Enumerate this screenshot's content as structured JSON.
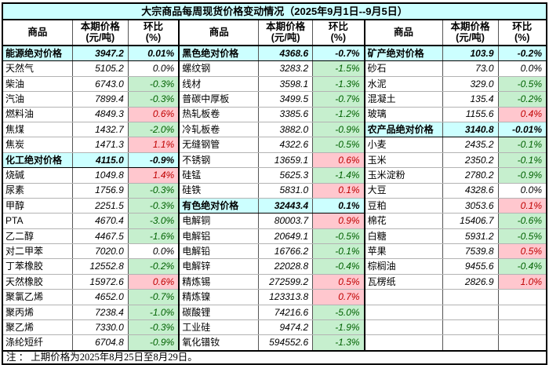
{
  "title": "大宗商品每周现货价格变动情况（2025年9月1日--9月5日）",
  "header": {
    "commodity": "商品",
    "price_line1": "本期价格",
    "price_line2": "(元/吨)",
    "pct_line1": "环比",
    "pct_line2": "(%)"
  },
  "note": "注 ： 上期价格为2025年8月25日至8月29日。",
  "colors": {
    "title_bg": "#CCFFFF",
    "section_bg": "#CCFFFF",
    "increase_bg": "#FFC7CE",
    "increase_text": "#C00000",
    "decrease_bg": "#C6EFCE",
    "decrease_text": "#006100"
  },
  "groups": [
    {
      "rows": [
        {
          "name": "能源绝对价格",
          "price": "3947.2",
          "pct": "0.01%",
          "type": "section"
        },
        {
          "name": "天然气",
          "price": "5105.2",
          "pct": "0.0%",
          "type": "flat"
        },
        {
          "name": "柴油",
          "price": "6743.0",
          "pct": "-0.3%",
          "type": "down"
        },
        {
          "name": "汽油",
          "price": "7899.4",
          "pct": "-0.3%",
          "type": "down"
        },
        {
          "name": "燃料油",
          "price": "4849.3",
          "pct": "0.6%",
          "type": "up"
        },
        {
          "name": "焦煤",
          "price": "1432.7",
          "pct": "-2.0%",
          "type": "down"
        },
        {
          "name": "焦炭",
          "price": "1471.3",
          "pct": "1.1%",
          "type": "up"
        },
        {
          "name": "化工绝对价格",
          "price": "4115.0",
          "pct": "-0.9%",
          "type": "section"
        },
        {
          "name": "烧碱",
          "price": "1049.8",
          "pct": "1.4%",
          "type": "up"
        },
        {
          "name": "尿素",
          "price": "1756.9",
          "pct": "-0.3%",
          "type": "down"
        },
        {
          "name": "甲醇",
          "price": "2251.5",
          "pct": "-0.3%",
          "type": "down"
        },
        {
          "name": "PTA",
          "price": "4670.4",
          "pct": "-3.0%",
          "type": "down"
        },
        {
          "name": "乙二醇",
          "price": "4467.5",
          "pct": "-1.6%",
          "type": "down"
        },
        {
          "name": "对二甲苯",
          "price": "7020.0",
          "pct": "0.0%",
          "type": "flat"
        },
        {
          "name": "丁苯橡胶",
          "price": "12552.8",
          "pct": "-0.2%",
          "type": "down"
        },
        {
          "name": "天然橡胶",
          "price": "15972.6",
          "pct": "0.6%",
          "type": "up"
        },
        {
          "name": "聚氯乙烯",
          "price": "4652.0",
          "pct": "-0.7%",
          "type": "down"
        },
        {
          "name": "聚丙烯",
          "price": "7238.4",
          "pct": "-1.0%",
          "type": "down"
        },
        {
          "name": "聚乙烯",
          "price": "7330.0",
          "pct": "-0.3%",
          "type": "down"
        },
        {
          "name": "涤纶短纤",
          "price": "6704.8",
          "pct": "-0.9%",
          "type": "down"
        }
      ]
    },
    {
      "rows": [
        {
          "name": "黑色绝对价格",
          "price": "4368.6",
          "pct": "-0.7%",
          "type": "section"
        },
        {
          "name": "螺纹钢",
          "price": "3283.2",
          "pct": "-1.5%",
          "type": "down"
        },
        {
          "name": "线材",
          "price": "3598.1",
          "pct": "-1.3%",
          "type": "down"
        },
        {
          "name": "普碳中厚板",
          "price": "3499.5",
          "pct": "-0.7%",
          "type": "down"
        },
        {
          "name": "热轧板卷",
          "price": "3385.6",
          "pct": "-1.2%",
          "type": "down"
        },
        {
          "name": "冷轧板卷",
          "price": "3882.0",
          "pct": "-0.9%",
          "type": "down"
        },
        {
          "name": "无缝钢管",
          "price": "4322.6",
          "pct": "-0.5%",
          "type": "down"
        },
        {
          "name": "不锈钢",
          "price": "13659.1",
          "pct": "0.6%",
          "type": "up"
        },
        {
          "name": "硅锰",
          "price": "5625.3",
          "pct": "-1.4%",
          "type": "down"
        },
        {
          "name": "硅铁",
          "price": "5831.0",
          "pct": "0.1%",
          "type": "up"
        },
        {
          "name": "有色绝对价格",
          "price": "32443.4",
          "pct": "0.1%",
          "type": "section"
        },
        {
          "name": "电解铜",
          "price": "80003.7",
          "pct": "0.9%",
          "type": "up"
        },
        {
          "name": "电解铝",
          "price": "20649.1",
          "pct": "-0.5%",
          "type": "down"
        },
        {
          "name": "电解铅",
          "price": "16766.2",
          "pct": "-0.1%",
          "type": "down"
        },
        {
          "name": "电解锌",
          "price": "22028.8",
          "pct": "-0.4%",
          "type": "down"
        },
        {
          "name": "精炼锡",
          "price": "272599.2",
          "pct": "0.5%",
          "type": "up"
        },
        {
          "name": "精炼镍",
          "price": "123313.8",
          "pct": "0.7%",
          "type": "up"
        },
        {
          "name": "碳酸锂",
          "price": "74216.6",
          "pct": "-5.0%",
          "type": "down"
        },
        {
          "name": "工业硅",
          "price": "9474.2",
          "pct": "-1.9%",
          "type": "down"
        },
        {
          "name": "氧化镨钕",
          "price": "594552.6",
          "pct": "-1.3%",
          "type": "down"
        }
      ]
    },
    {
      "rows": [
        {
          "name": "矿产绝对价格",
          "price": "103.9",
          "pct": "-0.2%",
          "type": "section"
        },
        {
          "name": "砂石",
          "price": "73.0",
          "pct": "0.0%",
          "type": "flat"
        },
        {
          "name": "水泥",
          "price": "329.0",
          "pct": "-0.5%",
          "type": "down"
        },
        {
          "name": "混凝土",
          "price": "135.4",
          "pct": "-0.2%",
          "type": "down"
        },
        {
          "name": "玻璃",
          "price": "1155.6",
          "pct": "0.4%",
          "type": "up"
        },
        {
          "name": "农产品绝对价格",
          "price": "3140.8",
          "pct": "-0.01%",
          "type": "section"
        },
        {
          "name": "小麦",
          "price": "2435.2",
          "pct": "-0.1%",
          "type": "down"
        },
        {
          "name": "玉米",
          "price": "2350.2",
          "pct": "-0.1%",
          "type": "down"
        },
        {
          "name": "玉米淀粉",
          "price": "2780.2",
          "pct": "-0.9%",
          "type": "down"
        },
        {
          "name": "大豆",
          "price": "4328.6",
          "pct": "0.0%",
          "type": "flat"
        },
        {
          "name": "豆粕",
          "price": "3053.6",
          "pct": "0.1%",
          "type": "up"
        },
        {
          "name": "棉花",
          "price": "15406.7",
          "pct": "-0.6%",
          "type": "down"
        },
        {
          "name": "白糖",
          "price": "5931.2",
          "pct": "-0.5%",
          "type": "down"
        },
        {
          "name": "苹果",
          "price": "7539.8",
          "pct": "0.5%",
          "type": "up"
        },
        {
          "name": "棕榈油",
          "price": "9455.6",
          "pct": "-0.4%",
          "type": "down"
        },
        {
          "name": "瓦楞纸",
          "price": "2826.9",
          "pct": "1.0%",
          "type": "up"
        },
        {
          "name": "",
          "price": "",
          "pct": "",
          "type": "empty"
        },
        {
          "name": "",
          "price": "",
          "pct": "",
          "type": "empty"
        },
        {
          "name": "",
          "price": "",
          "pct": "",
          "type": "empty"
        },
        {
          "name": "",
          "price": "",
          "pct": "",
          "type": "empty"
        }
      ]
    }
  ]
}
